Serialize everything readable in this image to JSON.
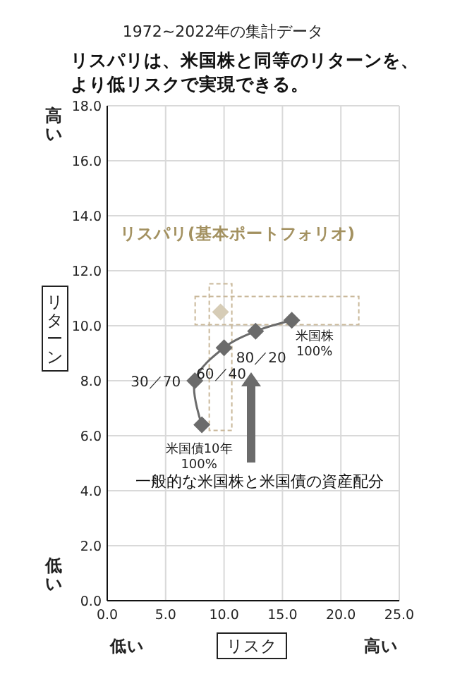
{
  "chart_data": {
    "type": "line",
    "subtitle": "1972~2022年の集計データ",
    "title": "リスパリは、米国株と同等のリターンを、より低リスクで実現できる。",
    "ylabel": "リターン",
    "xlabel": "リスク",
    "xlim": [
      0,
      25
    ],
    "ylim": [
      0,
      18
    ],
    "xticks": [
      {
        "value": 0,
        "label": "0.0"
      },
      {
        "value": 5,
        "label": "5.0"
      },
      {
        "value": 10,
        "label": "10.0"
      },
      {
        "value": 15,
        "label": "15.0"
      },
      {
        "value": 20,
        "label": "20.0"
      },
      {
        "value": 25,
        "label": "25.0"
      }
    ],
    "yticks": [
      {
        "value": 0,
        "label": "0.0"
      },
      {
        "value": 2,
        "label": "2.0"
      },
      {
        "value": 4,
        "label": "4.0"
      },
      {
        "value": 6,
        "label": "6.0"
      },
      {
        "value": 8,
        "label": "8.0"
      },
      {
        "value": 10,
        "label": "10.0"
      },
      {
        "value": 12,
        "label": "12.0"
      },
      {
        "value": 14,
        "label": "14.0"
      },
      {
        "value": 16,
        "label": "16.0"
      },
      {
        "value": 18,
        "label": "18.0"
      }
    ],
    "grid": true,
    "marker": "diamond",
    "line_style": "solid",
    "series": [
      {
        "color": "#6b6b6b",
        "x": [
          8.1,
          7.5,
          10.0,
          12.7,
          15.8
        ],
        "values": [
          6.4,
          8.0,
          9.2,
          9.8,
          10.2
        ]
      },
      {
        "type": "scatter",
        "name": "リスパリ(基本ポートフォリオ)",
        "color": "#d6ccb6",
        "x": [
          9.7
        ],
        "values": [
          10.5
        ]
      }
    ],
    "annotations": [
      "高い",
      "低い",
      "低い",
      "高い",
      "一般的な米国株と米国債の資産配分",
      {
        "text": "米国債10年 100%",
        "x": 8.1,
        "y": 6.4
      },
      {
        "text": "30／70",
        "x": 7.5,
        "y": 8.0
      },
      {
        "text": "60／40",
        "x": 10.0,
        "y": 9.2
      },
      {
        "text": "80／20",
        "x": 12.7,
        "y": 9.8
      },
      {
        "text": "米国株 100%",
        "x": 15.8,
        "y": 10.2
      }
    ]
  }
}
